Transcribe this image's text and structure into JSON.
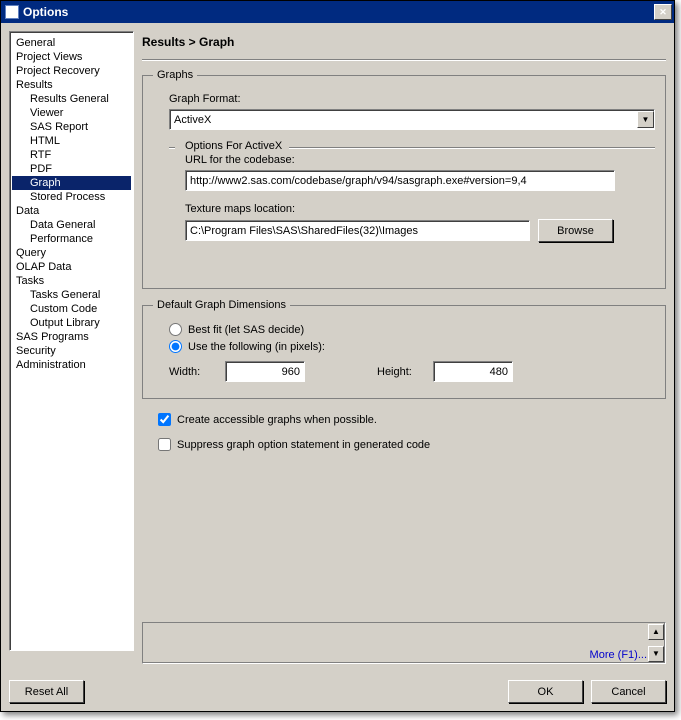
{
  "window": {
    "title": "Options"
  },
  "tree": {
    "items": [
      {
        "label": "General",
        "indent": false
      },
      {
        "label": "Project Views",
        "indent": false
      },
      {
        "label": "Project Recovery",
        "indent": false
      },
      {
        "label": "Results",
        "indent": false
      },
      {
        "label": "Results General",
        "indent": true
      },
      {
        "label": "Viewer",
        "indent": true
      },
      {
        "label": "SAS Report",
        "indent": true
      },
      {
        "label": "HTML",
        "indent": true
      },
      {
        "label": "RTF",
        "indent": true
      },
      {
        "label": "PDF",
        "indent": true
      },
      {
        "label": "Graph",
        "indent": true,
        "selected": true
      },
      {
        "label": "Stored Process",
        "indent": true
      },
      {
        "label": "Data",
        "indent": false
      },
      {
        "label": "Data General",
        "indent": true
      },
      {
        "label": "Performance",
        "indent": true
      },
      {
        "label": "Query",
        "indent": false
      },
      {
        "label": "OLAP Data",
        "indent": false
      },
      {
        "label": "Tasks",
        "indent": false
      },
      {
        "label": "Tasks General",
        "indent": true
      },
      {
        "label": "Custom Code",
        "indent": true
      },
      {
        "label": "Output Library",
        "indent": true
      },
      {
        "label": "SAS Programs",
        "indent": false
      },
      {
        "label": "Security",
        "indent": false
      },
      {
        "label": "Administration",
        "indent": false
      }
    ]
  },
  "breadcrumb": "Results > Graph",
  "graphs": {
    "legend": "Graphs",
    "format_label": "Graph Format:",
    "format_value": "ActiveX",
    "options_title": "Options For ActiveX",
    "url_label": "URL for the codebase:",
    "url_value": "http://www2.sas.com/codebase/graph/v94/sasgraph.exe#version=9,4",
    "texture_label": "Texture maps location:",
    "texture_value": "C:\\Program Files\\SAS\\SharedFiles(32)\\Images",
    "browse_label": "Browse"
  },
  "dimensions": {
    "legend": "Default Graph Dimensions",
    "bestfit_label": "Best fit (let SAS decide)",
    "usefollowing_label": "Use the following (in pixels):",
    "width_label": "Width:",
    "width_value": "960",
    "height_label": "Height:",
    "height_value": "480"
  },
  "checks": {
    "accessible_label": "Create accessible graphs when possible.",
    "suppress_label": "Suppress graph option statement in generated code"
  },
  "help": {
    "more_label": "More (F1)..."
  },
  "footer": {
    "reset_label": "Reset All",
    "ok_label": "OK",
    "cancel_label": "Cancel"
  }
}
